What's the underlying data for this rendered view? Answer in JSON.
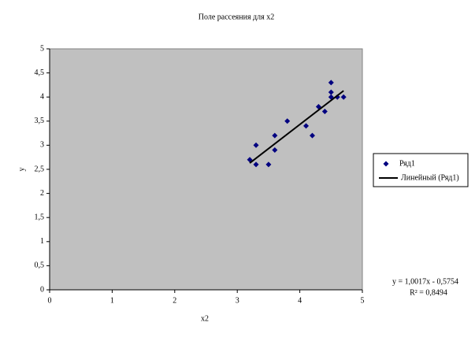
{
  "chart_data": {
    "type": "scatter",
    "title": "Поле рассеяния для x2",
    "x_label": "x2",
    "y_label": "y",
    "series": [
      {
        "name": "Ряд1",
        "color": "#000080",
        "x": [
          3.2,
          3.3,
          3.3,
          3.5,
          3.6,
          3.6,
          3.8,
          4.1,
          4.2,
          4.3,
          4.4,
          4.5,
          4.5,
          4.5,
          4.6,
          4.7
        ],
        "values": [
          2.7,
          2.6,
          3.0,
          2.6,
          2.9,
          3.2,
          3.5,
          3.4,
          3.2,
          3.8,
          3.7,
          4.3,
          4.1,
          4.0,
          4.0,
          4.0
        ]
      }
    ],
    "trendline": {
      "name": "Линейный (Ряд1)",
      "color": "#000000",
      "x": [
        3.2,
        4.7
      ],
      "values": [
        2.63,
        4.13
      ]
    },
    "equation": "y = 1,0017x - 0,5754",
    "r_squared": "R² = 0,8494",
    "xlim": [
      0,
      5
    ],
    "xticks": [
      0,
      1,
      2,
      3,
      4,
      5
    ],
    "ylim": [
      0,
      5
    ],
    "yticks": [
      0,
      {
        "value": 0.5,
        "label": "0,5"
      },
      1,
      {
        "value": 1.5,
        "label": "1,5"
      },
      2,
      {
        "value": 2.5,
        "label": "2,5"
      },
      3,
      {
        "value": 3.5,
        "label": "3,5"
      },
      4,
      {
        "value": 4.5,
        "label": "4,5"
      },
      5
    ],
    "plot_background": "#c0c0c0"
  }
}
